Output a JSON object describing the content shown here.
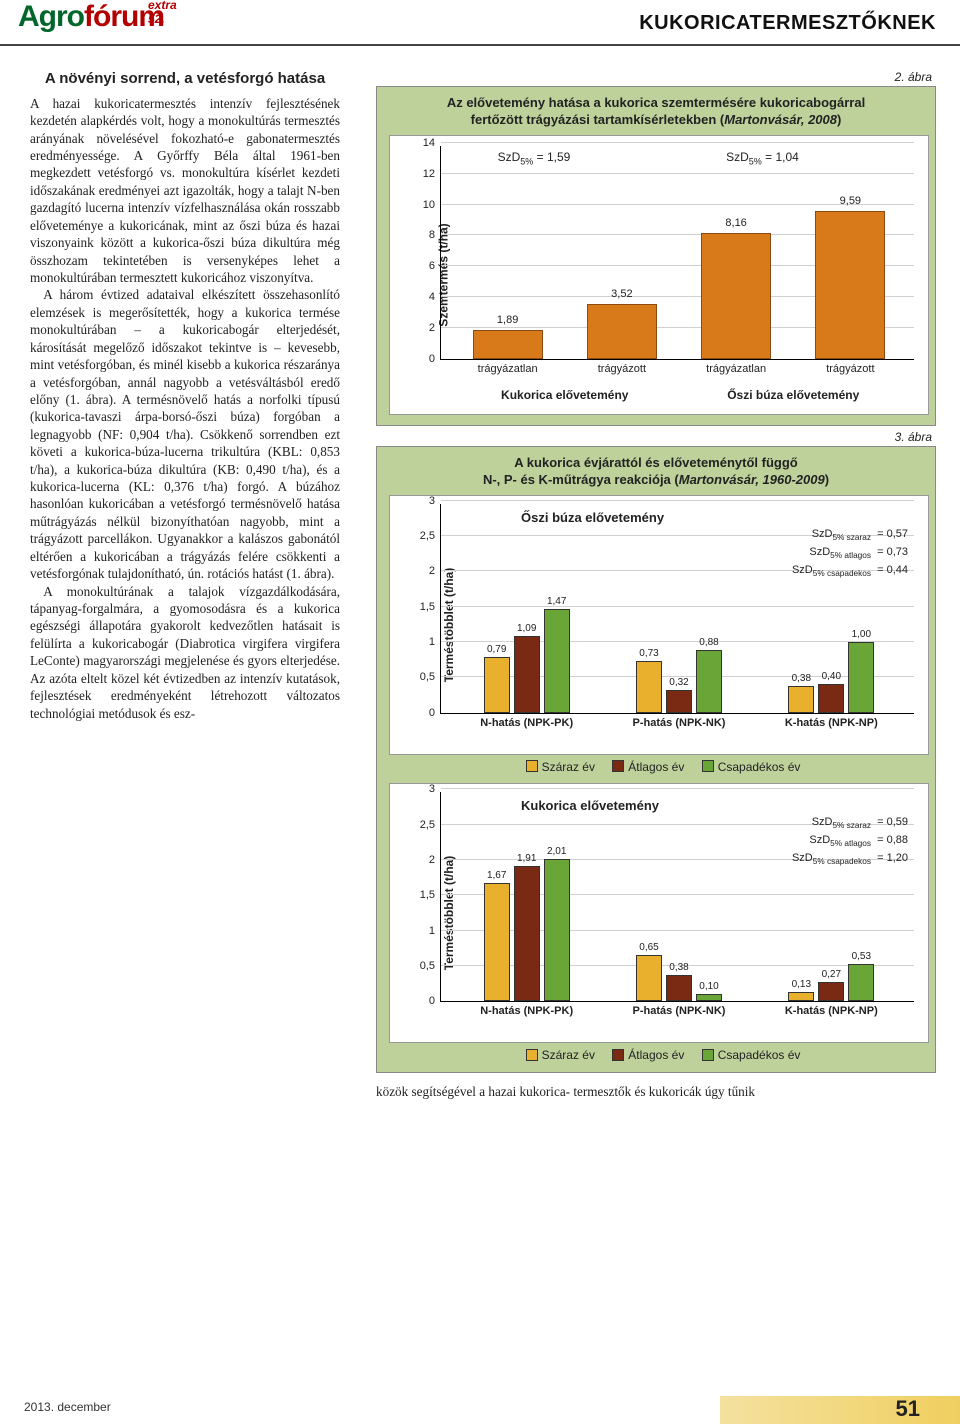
{
  "header": {
    "logo_main": "Agrofórum",
    "logo_sub": "extra 52.",
    "right": "KUKORICATERMESZTŐKNEK"
  },
  "article": {
    "heading": "A növényi sorrend, a vetésforgó hatása",
    "p1": "A hazai kukoricatermesztés intenzív fejlesztésének kezdetén alapkérdés volt, hogy a monokultúrás termesztés arányának növelésével fokozható-e gabonatermesztés eredményessége. A Győrffy Béla által 1961-ben megkezdett vetésforgó vs. monokultúra kísérlet kezdeti időszakának eredményei azt igazolták, hogy a talajt N-ben gazdagító lucerna intenzív vízfelhasználása okán rosszabb előveteménye a kukoricának, mint az őszi búza és hazai viszonyaink között a kukorica-őszi búza dikultúra még összhozam tekintetében is versenyképes lehet a monokultúrában termesztett kukoricához viszonyítva.",
    "p2": "A három évtized adataival elkészített összehasonlító elemzések is megerősítették, hogy a kukorica termése monokultúrában – a kukoricabogár elterjedését, károsítását megelőző időszakot tekintve is – kevesebb, mint vetésforgóban, és minél kisebb a kukorica részaránya a vetésforgóban, annál nagyobb a vetésváltásból eredő előny (1. ábra). A termésnövelő hatás a norfolki típusú (kukorica-tavaszi árpa-borsó-őszi búza) forgóban a legnagyobb (NF: 0,904 t/ha). Csökkenő sorrendben ezt követi a kukorica-búza-lucerna trikultúra (KBL: 0,853 t/ha), a kukorica-búza dikultúra (KB: 0,490 t/ha), és a kukorica-lucerna (KL: 0,376 t/ha) forgó. A búzához hasonlóan kukoricában a vetésforgó termésnövelő hatása műtrágyázás nélkül bizonyíthatóan nagyobb, mint a trágyázott parcellákon. Ugyanakkor a kalászos gabonától eltérően a kukoricában a trágyázás felére csökkenti a vetésforgónak tulajdonítható, ún. rotációs hatást (1. ábra).",
    "p3": "A monokultúrának a talajok vízgazdálkodására, tápanyag-forgalmára, a gyomosodásra és a kukorica egészségi állapotára gyakorolt kedvezőtlen hatásait is felülírta a kukoricabogár (Diabrotica virgifera virgifera LeConte) magyarországi megjelenése és gyors elterjedése. Az azóta eltelt közel két évtizedben az intenzív kutatások, fejlesztések eredményeként létrehozott változatos technológiai metódusok és esz-",
    "tail": "közök segítségével a hazai kukorica-   termesztők és kukoricák úgy tűnik"
  },
  "fig2": {
    "caption": "2. ábra",
    "title_a": "Az elővetemény hatása a kukorica szemtermésére kukoricabogárral",
    "title_b": "fertőzött trágyázási tartamkísérletekben (Martonvásár, 2008)",
    "ylabel": "Szemtermés (t/ha)",
    "ylim": [
      0,
      14
    ],
    "ytick_step": 2,
    "annot_left": "SzD₅% = 1,59",
    "annot_right": "SzD₅% = 1,04",
    "categories": [
      "trágyázatlan",
      "trágyázott",
      "trágyázatlan",
      "trágyázott"
    ],
    "values": [
      1.89,
      3.52,
      8.16,
      9.59
    ],
    "value_labels": [
      "1,89",
      "3,52",
      "8,16",
      "9,59"
    ],
    "bar_color": "#d97a1a",
    "border_color": "#8a4a10",
    "group_labels": [
      "Kukorica elővetemény",
      "Őszi búza elővetemény"
    ]
  },
  "fig3": {
    "caption": "3. ábra",
    "title_a": "A kukorica évjárattól és előveteménytől függő",
    "title_b": "N-, P- és K-műtrágya reakciója (Martonvásár, 1960-2009)",
    "ylabel": "Terméstöbblet (t/ha)",
    "ylim": [
      0,
      3
    ],
    "ytick_step": 0.5,
    "ytick_labels": [
      "0",
      "0,5",
      "1",
      "1,5",
      "2",
      "2,5",
      "3"
    ],
    "x_categories": [
      "N-hatás (NPK-PK)",
      "P-hatás (NPK-NK)",
      "K-hatás (NPK-NP)"
    ],
    "series_labels": [
      "Száraz év",
      "Átlagos év",
      "Csapadékos év"
    ],
    "series_colors": [
      "#e9b02e",
      "#7a2a13",
      "#6aa637"
    ],
    "sd_labels": {
      "szaraz": "SzD₅% száraz",
      "atlagos": "SzD₅% átlagos",
      "csapadekos": "SzD₅% csapadékos"
    },
    "panel_top": {
      "title": "Őszi búza elővetemény",
      "values": [
        [
          0.79,
          1.09,
          1.47
        ],
        [
          0.73,
          0.32,
          0.88
        ],
        [
          0.38,
          0.4,
          1.0
        ]
      ],
      "value_labels": [
        [
          "0,79",
          "1,09",
          "1,47"
        ],
        [
          "0,73",
          "0,32",
          "0,88"
        ],
        [
          "0,38",
          "0,40",
          "1,00"
        ]
      ],
      "sd": [
        "= 0,57",
        "= 0,73",
        "= 0,44"
      ]
    },
    "panel_bot": {
      "title": "Kukorica elővetemény",
      "values": [
        [
          1.67,
          1.91,
          2.01
        ],
        [
          0.65,
          0.38,
          0.1
        ],
        [
          0.13,
          0.27,
          0.53
        ]
      ],
      "value_labels": [
        [
          "1,67",
          "1,91",
          "2,01"
        ],
        [
          "0,65",
          "0,38",
          "0,10"
        ],
        [
          "0,13",
          "0,27",
          "0,53"
        ]
      ],
      "sd": [
        "= 0,59",
        "= 0,88",
        "= 1,20"
      ]
    }
  },
  "footer": {
    "date": "2013. december",
    "page": "51"
  }
}
